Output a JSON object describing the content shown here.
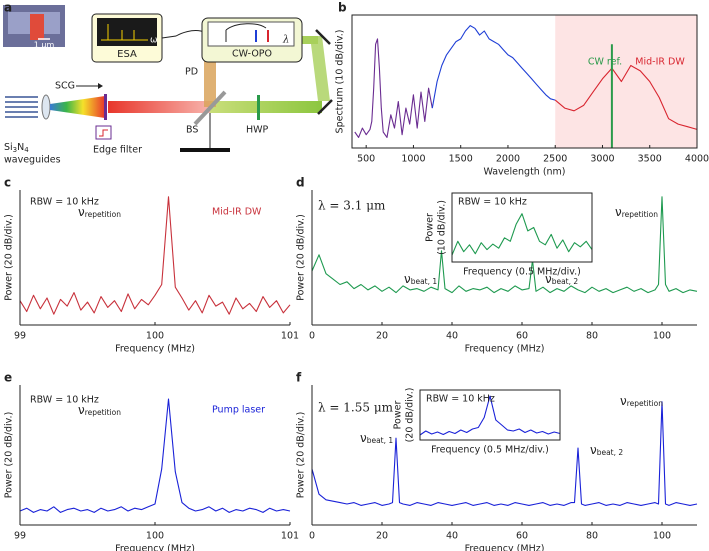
{
  "panel_labels": [
    "a",
    "b",
    "c",
    "d",
    "e",
    "f"
  ],
  "diagram": {
    "esa": "ESA",
    "omega": "ω",
    "opo": "CW-OPO",
    "lambda": "λ",
    "pd": "PD",
    "scg": "SCG",
    "scale": "1 μm",
    "chip": [
      "Si",
      "3",
      "N",
      "4"
    ],
    "waveguides": "waveguides",
    "edge_filter": "Edge filter",
    "bs": "BS",
    "hwp": "HWP"
  },
  "chart_data": [
    {
      "type": "line",
      "frame": "box",
      "xlabel": "Wavelength (nm)",
      "ylabel": "Spectrum (10 dB/div.)",
      "xlim": [
        350,
        4000
      ],
      "xticks": [
        500,
        1000,
        1500,
        2000,
        2500,
        3000,
        3500,
        4000
      ],
      "ylim": [
        0,
        100
      ],
      "highlight_xlim": [
        2500,
        4000
      ],
      "highlight_color": "#fde4e4",
      "series": [
        {
          "color": "#6a2c91",
          "x": [
            380,
            420,
            460,
            500,
            540,
            560,
            580,
            600,
            620,
            640,
            660,
            680,
            720,
            760,
            800,
            840,
            880,
            920,
            960,
            1000,
            1040,
            1080,
            1120,
            1160,
            1200
          ],
          "values": [
            12,
            8,
            15,
            10,
            14,
            20,
            45,
            78,
            82,
            60,
            30,
            12,
            8,
            25,
            15,
            35,
            10,
            30,
            18,
            40,
            15,
            42,
            20,
            45,
            30
          ]
        },
        {
          "color": "#1f3fd6",
          "x": [
            1200,
            1250,
            1300,
            1350,
            1400,
            1450,
            1500,
            1550,
            1600,
            1650,
            1700,
            1750,
            1800,
            1850,
            1900,
            1950,
            2000,
            2050,
            2100,
            2150,
            2200,
            2250,
            2300,
            2350,
            2400,
            2450,
            2500
          ],
          "values": [
            30,
            50,
            62,
            70,
            75,
            80,
            82,
            88,
            92,
            90,
            85,
            88,
            82,
            80,
            78,
            74,
            70,
            68,
            64,
            60,
            56,
            52,
            48,
            44,
            40,
            37,
            36
          ]
        },
        {
          "name": "Mid-IR DW",
          "color": "#d8252f",
          "x": [
            2500,
            2600,
            2700,
            2800,
            2900,
            3000,
            3100,
            3200,
            3300,
            3400,
            3500,
            3600,
            3700,
            3800,
            3900,
            4000
          ],
          "values": [
            36,
            30,
            28,
            32,
            42,
            52,
            60,
            50,
            62,
            58,
            50,
            38,
            22,
            18,
            16,
            14
          ]
        },
        {
          "name": "CW ref.",
          "color": "#2a9a4a",
          "x": [
            3100,
            3100
          ],
          "values": [
            0,
            78
          ]
        }
      ]
    },
    {
      "type": "line",
      "frame": "axes",
      "xlabel": "Frequency (MHz)",
      "ylabel": "Power (20 dB/div.)",
      "xlim": [
        99,
        101
      ],
      "xticks": [
        99,
        100,
        101
      ],
      "ylim": [
        0,
        100
      ],
      "x": [
        99,
        99.05,
        99.1,
        99.15,
        99.2,
        99.25,
        99.3,
        99.35,
        99.4,
        99.45,
        99.5,
        99.55,
        99.6,
        99.65,
        99.7,
        99.75,
        99.8,
        99.85,
        99.9,
        99.95,
        100,
        100.05,
        100.1,
        100.15,
        100.2,
        100.25,
        100.3,
        100.35,
        100.4,
        100.45,
        100.5,
        100.55,
        100.6,
        100.65,
        100.7,
        100.75,
        100.8,
        100.85,
        100.9,
        100.95,
        101
      ],
      "series": [
        {
          "color": "#c8323c",
          "values": [
            18,
            10,
            22,
            12,
            20,
            8,
            19,
            14,
            24,
            11,
            17,
            9,
            21,
            13,
            18,
            10,
            23,
            12,
            19,
            15,
            22,
            30,
            95,
            28,
            20,
            11,
            18,
            9,
            22,
            14,
            17,
            8,
            20,
            12,
            16,
            10,
            21,
            13,
            18,
            9,
            15
          ]
        }
      ],
      "annotations": [
        {
          "text": "RBW = 10 kHz"
        },
        {
          "symbol": "ν",
          "sub": "repetition"
        },
        {
          "text": "Mid-IR DW",
          "color": "#c8323c"
        }
      ]
    },
    {
      "type": "line",
      "frame": "axes",
      "xlabel": "Frequency (MHz)",
      "ylabel": "Power (20 dB/div.)",
      "xlim": [
        0,
        110
      ],
      "xticks": [
        0,
        20,
        40,
        60,
        80,
        100
      ],
      "ylim": [
        0,
        100
      ],
      "x": [
        0,
        2,
        4,
        6,
        8,
        10,
        12,
        14,
        16,
        18,
        20,
        22,
        24,
        26,
        28,
        30,
        32,
        34,
        36,
        37,
        38,
        40,
        42,
        44,
        46,
        48,
        50,
        52,
        54,
        56,
        58,
        60,
        62,
        63,
        64,
        66,
        68,
        70,
        72,
        74,
        76,
        78,
        80,
        82,
        84,
        86,
        88,
        90,
        92,
        94,
        96,
        98,
        99,
        100,
        101,
        102,
        104,
        106,
        108,
        110
      ],
      "series": [
        {
          "color": "#1f9a50",
          "values": [
            40,
            52,
            38,
            34,
            30,
            32,
            27,
            30,
            26,
            29,
            25,
            28,
            24,
            29,
            26,
            27,
            25,
            28,
            26,
            55,
            27,
            24,
            29,
            25,
            27,
            26,
            28,
            24,
            27,
            25,
            29,
            26,
            27,
            48,
            25,
            28,
            24,
            27,
            25,
            29,
            26,
            24,
            28,
            25,
            27,
            24,
            26,
            28,
            25,
            27,
            24,
            26,
            30,
            95,
            30,
            25,
            27,
            24,
            26,
            25
          ]
        }
      ],
      "annotations": [
        {
          "text": "λ = 3.1 μm"
        },
        {
          "symbol": "ν",
          "sub": "beat, 1"
        },
        {
          "symbol": "ν",
          "sub": "beat, 2"
        },
        {
          "symbol": "ν",
          "sub": "repetition"
        }
      ],
      "inset": {
        "type": "line",
        "frame": "box",
        "xlabel": "Frequency (0.5 MHz/div.)",
        "ylabel": [
          "Power",
          "(10 dB/div.)"
        ],
        "annotation": "RBW = 10 kHz",
        "xlim": [
          0,
          24
        ],
        "ylim": [
          0,
          100
        ],
        "x": [
          0,
          1,
          2,
          3,
          4,
          5,
          6,
          7,
          8,
          9,
          10,
          11,
          12,
          13,
          14,
          15,
          16,
          17,
          18,
          19,
          20,
          21,
          22,
          23,
          24
        ],
        "series": [
          {
            "color": "#1f9a50",
            "values": [
              10,
              30,
              15,
              25,
              12,
              28,
              18,
              26,
              20,
              35,
              30,
              55,
              70,
              45,
              50,
              30,
              25,
              40,
              20,
              32,
              15,
              28,
              22,
              30,
              18
            ]
          }
        ]
      }
    },
    {
      "type": "line",
      "frame": "axes",
      "xlabel": "Frequency (MHz)",
      "ylabel": "Power (20 dB/div.)",
      "xlim": [
        99,
        101
      ],
      "xticks": [
        99,
        100,
        101
      ],
      "ylim": [
        0,
        100
      ],
      "x": [
        99,
        99.05,
        99.1,
        99.15,
        99.2,
        99.25,
        99.3,
        99.35,
        99.4,
        99.45,
        99.5,
        99.55,
        99.6,
        99.65,
        99.7,
        99.75,
        99.8,
        99.85,
        99.9,
        99.95,
        100,
        100.05,
        100.1,
        100.15,
        100.2,
        100.25,
        100.3,
        100.35,
        100.4,
        100.45,
        100.5,
        100.55,
        100.6,
        100.65,
        100.7,
        100.75,
        100.8,
        100.85,
        100.9,
        100.95,
        101
      ],
      "series": [
        {
          "color": "#1a22d8",
          "values": [
            10,
            12,
            9,
            11,
            10,
            13,
            9,
            11,
            12,
            10,
            11,
            9,
            12,
            10,
            11,
            13,
            10,
            12,
            11,
            13,
            15,
            40,
            90,
            38,
            16,
            12,
            10,
            11,
            13,
            10,
            12,
            9,
            11,
            10,
            12,
            11,
            9,
            12,
            10,
            11,
            10
          ]
        }
      ],
      "annotations": [
        {
          "text": "RBW = 10 kHz"
        },
        {
          "symbol": "ν",
          "sub": "repetition"
        },
        {
          "text": "Pump laser",
          "color": "#1a22d8"
        }
      ]
    },
    {
      "type": "line",
      "frame": "axes",
      "xlabel": "Frequency (MHz)",
      "ylabel": "Power (20 dB/div.)",
      "xlim": [
        0,
        110
      ],
      "xticks": [
        0,
        20,
        40,
        60,
        80,
        100
      ],
      "ylim": [
        0,
        100
      ],
      "x": [
        0,
        2,
        4,
        6,
        8,
        10,
        12,
        14,
        16,
        18,
        20,
        22,
        23,
        24,
        25,
        26,
        28,
        30,
        32,
        34,
        36,
        38,
        40,
        42,
        44,
        46,
        48,
        50,
        52,
        54,
        56,
        58,
        60,
        62,
        64,
        66,
        68,
        70,
        72,
        74,
        75,
        76,
        77,
        78,
        80,
        82,
        84,
        86,
        88,
        90,
        92,
        94,
        96,
        98,
        99,
        100,
        101,
        102,
        104,
        106,
        108,
        110
      ],
      "series": [
        {
          "color": "#1a22d8",
          "values": [
            40,
            22,
            18,
            17,
            16,
            15,
            16,
            14,
            15,
            16,
            14,
            15,
            16,
            62,
            16,
            15,
            14,
            16,
            15,
            14,
            16,
            15,
            14,
            15,
            16,
            14,
            15,
            16,
            14,
            15,
            14,
            16,
            15,
            14,
            15,
            16,
            14,
            15,
            14,
            16,
            16,
            55,
            15,
            14,
            15,
            16,
            14,
            15,
            14,
            16,
            15,
            14,
            15,
            16,
            15,
            88,
            15,
            14,
            16,
            15,
            14,
            15
          ]
        }
      ],
      "annotations": [
        {
          "text": "λ = 1.55 μm"
        },
        {
          "symbol": "ν",
          "sub": "beat, 1"
        },
        {
          "symbol": "ν",
          "sub": "beat, 2"
        },
        {
          "symbol": "ν",
          "sub": "repetition"
        }
      ],
      "inset": {
        "type": "line",
        "frame": "box",
        "xlabel": "Frequency (0.5 MHz/div.)",
        "ylabel": [
          "Power",
          "(20 dB/div.)"
        ],
        "annotation": "RBW = 10 kHz",
        "xlim": [
          0,
          24
        ],
        "ylim": [
          0,
          100
        ],
        "x": [
          0,
          1,
          2,
          3,
          4,
          5,
          6,
          7,
          8,
          9,
          10,
          11,
          12,
          13,
          14,
          15,
          16,
          17,
          18,
          19,
          20,
          21,
          22,
          23,
          24
        ],
        "series": [
          {
            "color": "#1a22d8",
            "values": [
              10,
              18,
              12,
              16,
              11,
              17,
              13,
              20,
              15,
              22,
              25,
              45,
              88,
              40,
              30,
              20,
              18,
              22,
              15,
              20,
              14,
              17,
              12,
              16,
              13
            ]
          }
        ]
      }
    }
  ]
}
